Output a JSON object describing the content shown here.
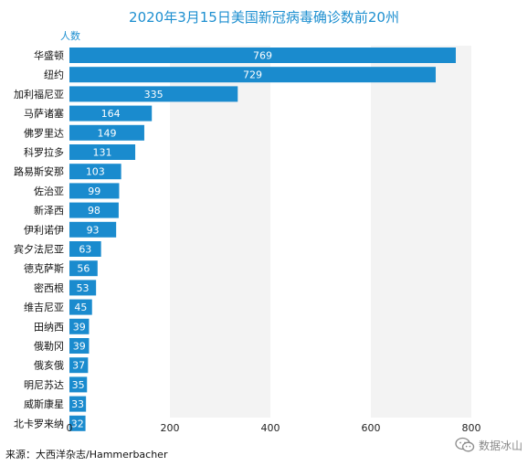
{
  "title": "2020年3月15日美国新冠病毒确诊数前20州",
  "source": "来源：大西洋杂志/Hammerbacher",
  "watermark": "数据冰山",
  "chart_data": {
    "type": "bar",
    "orientation": "horizontal",
    "title": "2020年3月15日美国新冠病毒确诊数前20州",
    "ylabel": "人数",
    "xlim": [
      0,
      800
    ],
    "xticks": [
      0,
      200,
      400,
      600,
      800
    ],
    "grid": "alternating vertical bands",
    "bar_color": "#1a8bce",
    "categories": [
      "华盛顿",
      "纽约",
      "加利福尼亚",
      "马萨诸塞",
      "佛罗里达",
      "科罗拉多",
      "路易斯安那",
      "佐治亚",
      "新泽西",
      "伊利诺伊",
      "宾夕法尼亚",
      "德克萨斯",
      "密西根",
      "维吉尼亚",
      "田纳西",
      "俄勒冈",
      "俄亥俄",
      "明尼苏达",
      "威斯康星",
      "北卡罗来纳"
    ],
    "values": [
      769,
      729,
      335,
      164,
      149,
      131,
      103,
      99,
      98,
      93,
      63,
      56,
      53,
      45,
      39,
      39,
      37,
      35,
      33,
      32
    ]
  }
}
